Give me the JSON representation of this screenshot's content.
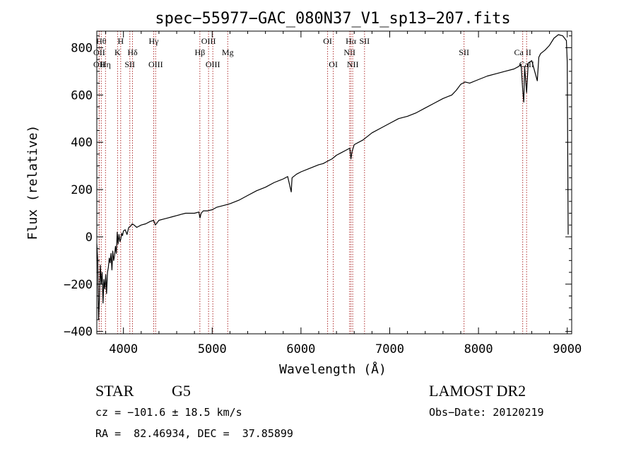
{
  "chart_data": {
    "type": "line",
    "title": "spec−55977−GAC_080N37_V1_sp13−207.fits",
    "xlabel": "Wavelength (Å)",
    "ylabel": "Flux (relative)",
    "xlim": [
      3700,
      9050
    ],
    "ylim": [
      -410,
      870
    ],
    "xticks": [
      4000,
      5000,
      6000,
      7000,
      8000,
      9000
    ],
    "yticks": [
      -400,
      -200,
      0,
      200,
      400,
      600,
      800
    ],
    "xtick_labels": [
      "4000",
      "5000",
      "6000",
      "7000",
      "8000",
      "9000"
    ],
    "ytick_labels": [
      "−400",
      "−200",
      "0",
      "200",
      "400",
      "600",
      "800"
    ],
    "grid": false,
    "series": [
      {
        "x": [
          3700,
          3710,
          3720,
          3730,
          3740,
          3750,
          3760,
          3770,
          3780,
          3790,
          3800,
          3810,
          3820,
          3830,
          3840,
          3850,
          3860,
          3870,
          3880,
          3890,
          3900,
          3910,
          3920,
          3930,
          3940,
          3950,
          3960,
          3970,
          3980,
          3990,
          4000,
          4020,
          4040,
          4060,
          4080,
          4100,
          4120,
          4150,
          4200,
          4250,
          4300,
          4340,
          4360,
          4400,
          4450,
          4500,
          4550,
          4600,
          4650,
          4700,
          4750,
          4800,
          4850,
          4862,
          4875,
          4900,
          4950,
          5000,
          5050,
          5100,
          5150,
          5200,
          5300,
          5400,
          5500,
          5600,
          5700,
          5800,
          5850,
          5890,
          5900,
          5950,
          6000,
          6100,
          6200,
          6250,
          6300,
          6350,
          6400,
          6450,
          6500,
          6550,
          6563,
          6575,
          6600,
          6650,
          6700,
          6800,
          6900,
          7000,
          7100,
          7200,
          7300,
          7400,
          7500,
          7600,
          7700,
          7750,
          7800,
          7850,
          7900,
          8000,
          8100,
          8200,
          8300,
          8400,
          8450,
          8480,
          8498,
          8510,
          8520,
          8542,
          8560,
          8600,
          8662,
          8680,
          8700,
          8750,
          8800,
          8850,
          8900,
          8950,
          8990,
          9000,
          9010
        ],
        "y": [
          -30,
          -100,
          -350,
          -250,
          -120,
          -200,
          -150,
          -280,
          -180,
          -220,
          -160,
          -240,
          -150,
          -130,
          -90,
          -110,
          -70,
          -140,
          -60,
          -100,
          -80,
          -40,
          -70,
          20,
          -30,
          10,
          -20,
          -10,
          15,
          5,
          25,
          30,
          10,
          40,
          45,
          55,
          50,
          40,
          50,
          55,
          65,
          70,
          50,
          70,
          75,
          80,
          85,
          90,
          95,
          100,
          100,
          100,
          105,
          80,
          100,
          110,
          110,
          115,
          125,
          130,
          135,
          140,
          155,
          175,
          195,
          210,
          230,
          245,
          255,
          190,
          250,
          265,
          275,
          290,
          305,
          310,
          320,
          330,
          345,
          355,
          365,
          375,
          330,
          360,
          390,
          400,
          410,
          440,
          460,
          480,
          500,
          510,
          525,
          545,
          565,
          585,
          600,
          620,
          645,
          655,
          650,
          665,
          680,
          690,
          700,
          710,
          720,
          730,
          620,
          570,
          720,
          610,
          735,
          745,
          660,
          760,
          775,
          790,
          810,
          840,
          855,
          850,
          830,
          740,
          10
        ]
      }
    ],
    "line_color": "#000000",
    "lines_color": "#b03030",
    "line_markers": [
      {
        "x": 3750,
        "label": "Hθ",
        "row": 0
      },
      {
        "x": 3727,
        "label": "OII",
        "row": 1
      },
      {
        "x": 3727,
        "label": "OII",
        "row": 2
      },
      {
        "x": 3798,
        "label": "Hη",
        "row": 2
      },
      {
        "x": 3934,
        "label": "K",
        "row": 1
      },
      {
        "x": 3969,
        "label": "H",
        "row": 0
      },
      {
        "x": 4072,
        "label": "SII",
        "row": 2
      },
      {
        "x": 4102,
        "label": "Hδ",
        "row": 1
      },
      {
        "x": 4341,
        "label": "Hγ",
        "row": 0
      },
      {
        "x": 4363,
        "label": "OIII",
        "row": 2
      },
      {
        "x": 4861,
        "label": "Hβ",
        "row": 1
      },
      {
        "x": 4959,
        "label": "OIII",
        "row": 0
      },
      {
        "x": 5007,
        "label": "OIII",
        "row": 2
      },
      {
        "x": 5175,
        "label": "Mg",
        "row": 1
      },
      {
        "x": 6300,
        "label": "OI",
        "row": 0
      },
      {
        "x": 6364,
        "label": "OI",
        "row": 2
      },
      {
        "x": 6548,
        "label": "NII",
        "row": 1
      },
      {
        "x": 6563,
        "label": "Hα",
        "row": 0
      },
      {
        "x": 6583,
        "label": "NII",
        "row": 2
      },
      {
        "x": 6716,
        "label": "SII",
        "row": 0
      },
      {
        "x": 7837,
        "label": "SII",
        "row": 1
      },
      {
        "x": 8498,
        "label": "Ca II",
        "row": 1
      },
      {
        "x": 8542,
        "label": "CaII",
        "row": 2
      }
    ]
  },
  "info": {
    "class": "STAR",
    "subclass": "G5",
    "survey": "LAMOST DR2",
    "cz": "cz = −101.6 ± 18.5 km/s",
    "obs_date": "Obs−Date: 20120219",
    "radec": "RA =  82.46934, DEC =  37.85899"
  }
}
